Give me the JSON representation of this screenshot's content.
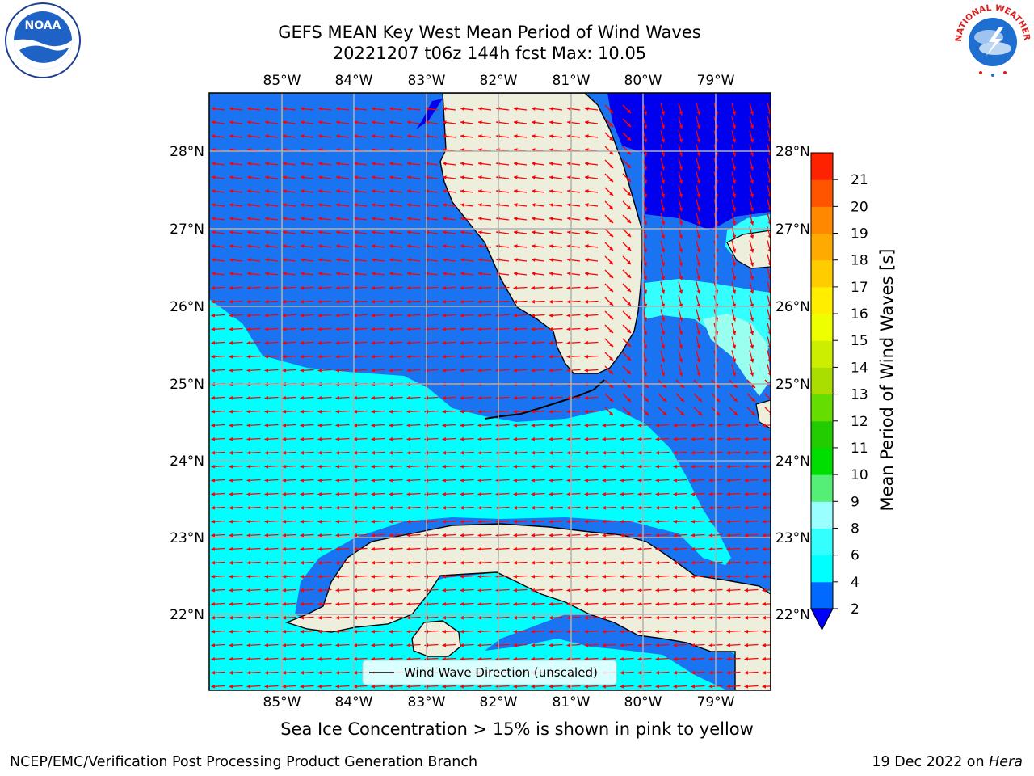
{
  "header": {
    "title_line1": "GEFS MEAN Key West Mean Period of Wind Waves",
    "title_line2": "20221207 t06z 144h fcst   Max: 10.05"
  },
  "logos": {
    "left": "NOAA",
    "right_text": "NATIONAL WEATHER SERVICE"
  },
  "map": {
    "lon_labels": [
      "85°W",
      "84°W",
      "83°W",
      "82°W",
      "81°W",
      "80°W",
      "79°W"
    ],
    "lat_labels": [
      "28°N",
      "27°N",
      "26°N",
      "25°N",
      "24°N",
      "23°N",
      "22°N"
    ],
    "colors": {
      "land": "#eeeedd",
      "ocean_2_4": "#1a74f2",
      "ocean_dark": "#0000ee",
      "ocean_4_6": "#00ffff",
      "ocean_6_8": "#55ffff",
      "ocean_8_9": "#99ffee",
      "arrow": "#ff0000",
      "grid": "#b0b0b0"
    },
    "legend_label": "Wind Wave Direction (unscaled)"
  },
  "colorbar": {
    "label": "Mean Period of Wind Waves [s]",
    "ticks": [
      "2",
      "4",
      "6",
      "8",
      "9",
      "10",
      "11",
      "12",
      "13",
      "14",
      "15",
      "16",
      "17",
      "18",
      "19",
      "20",
      "21"
    ],
    "colors": [
      "#0069ff",
      "#00ffff",
      "#33ffff",
      "#99ffff",
      "#55ee77",
      "#00dd00",
      "#22cc00",
      "#66dd00",
      "#aadd00",
      "#ccee00",
      "#eeff00",
      "#ffee00",
      "#ffcc00",
      "#ffaa00",
      "#ff8800",
      "#ff5500",
      "#ff2200"
    ],
    "under_color": "#0000ff"
  },
  "footer": {
    "note": "Sea Ice Concentration > 15% is shown in pink to yellow",
    "left_credit": "NCEP/EMC/Verification Post Processing Product Generation Branch",
    "date": "19 Dec 2022 on",
    "machine": "Hera"
  }
}
